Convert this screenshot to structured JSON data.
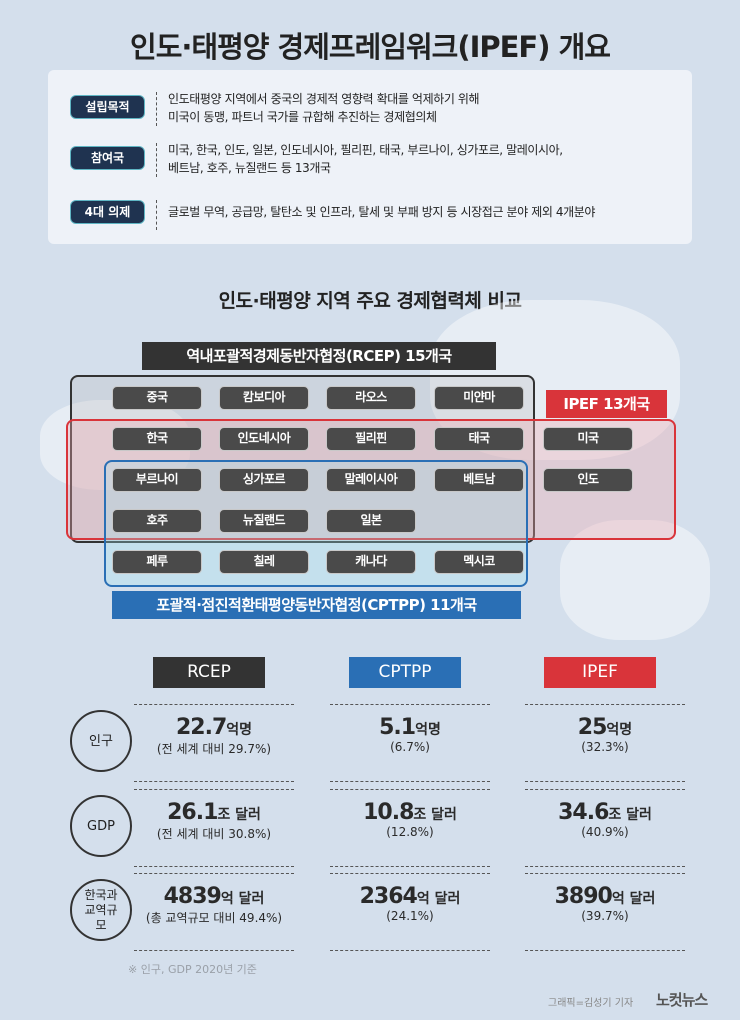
{
  "title": "인도·태평양 경제프레임워크(IPEF) 개요",
  "overview": [
    {
      "label": "설립목적",
      "lines": [
        "인도태평양 지역에서 중국의 경제적 영향력 확대를 억제하기 위해",
        "미국이 동맹, 파트너 국가를 규합해 추진하는 경제협의체"
      ]
    },
    {
      "label": "참여국",
      "lines": [
        "미국, 한국, 인도, 일본, 인도네시아, 필리핀, 태국, 부르나이, 싱가포르, 말레이시아,",
        "베트남, 호주, 뉴질랜드 등 13개국"
      ]
    },
    {
      "label": "4대 의제",
      "lines": [
        "글로벌 무역, 공급망, 탈탄소 및 인프라, 탈세 및 부패 방지 등 시장접근 분야 제외 4개분야"
      ]
    }
  ],
  "comparison_title": "인도·태평양 지역 주요 경제협력체 비교",
  "groups": {
    "rcep": "역내포괄적경제동반자협정(RCEP) 15개국",
    "ipef": "IPEF 13개국",
    "cptpp": "포괄적·점진적환태평양동반자협정(CPTPP) 11개국"
  },
  "colors": {
    "rcep": "#333333",
    "ipef": "#d9343a",
    "cptpp": "#2a6fb5",
    "background": "#d4dfec"
  },
  "countries": [
    [
      "중국",
      "캄보디아",
      "라오스",
      "미얀마",
      ""
    ],
    [
      "한국",
      "인도네시아",
      "필리핀",
      "태국",
      "미국"
    ],
    [
      "부르나이",
      "싱가포르",
      "말레이시아",
      "베트남",
      "인도"
    ],
    [
      "호주",
      "뉴질랜드",
      "일본",
      "",
      ""
    ],
    [
      "페루",
      "칠레",
      "캐나다",
      "멕시코",
      ""
    ]
  ],
  "table": {
    "headers": [
      "RCEP",
      "CPTPP",
      "IPEF"
    ],
    "rows": [
      {
        "label": "인구",
        "cells": [
          {
            "v": "22.7",
            "u": "억명",
            "p": "(전 세계 대비 29.7%)"
          },
          {
            "v": "5.1",
            "u": "억명",
            "p": "(6.7%)"
          },
          {
            "v": "25",
            "u": "억명",
            "p": "(32.3%)"
          }
        ]
      },
      {
        "label": "GDP",
        "cells": [
          {
            "v": "26.1",
            "u": "조 달러",
            "p": "(전 세계 대비 30.8%)"
          },
          {
            "v": "10.8",
            "u": "조 달러",
            "p": "(12.8%)"
          },
          {
            "v": "34.6",
            "u": "조 달러",
            "p": "(40.9%)"
          }
        ]
      },
      {
        "label": "한국과 교역규모",
        "cells": [
          {
            "v": "4839",
            "u": "억 달러",
            "p": "(총 교역규모 대비 49.4%)"
          },
          {
            "v": "2364",
            "u": "억 달러",
            "p": "(24.1%)"
          },
          {
            "v": "3890",
            "u": "억 달러",
            "p": "(39.7%)"
          }
        ]
      }
    ]
  },
  "note": "※ 인구, GDP 2020년 기준",
  "credit": "그래픽=김성기 기자",
  "logo": "노컷뉴스"
}
